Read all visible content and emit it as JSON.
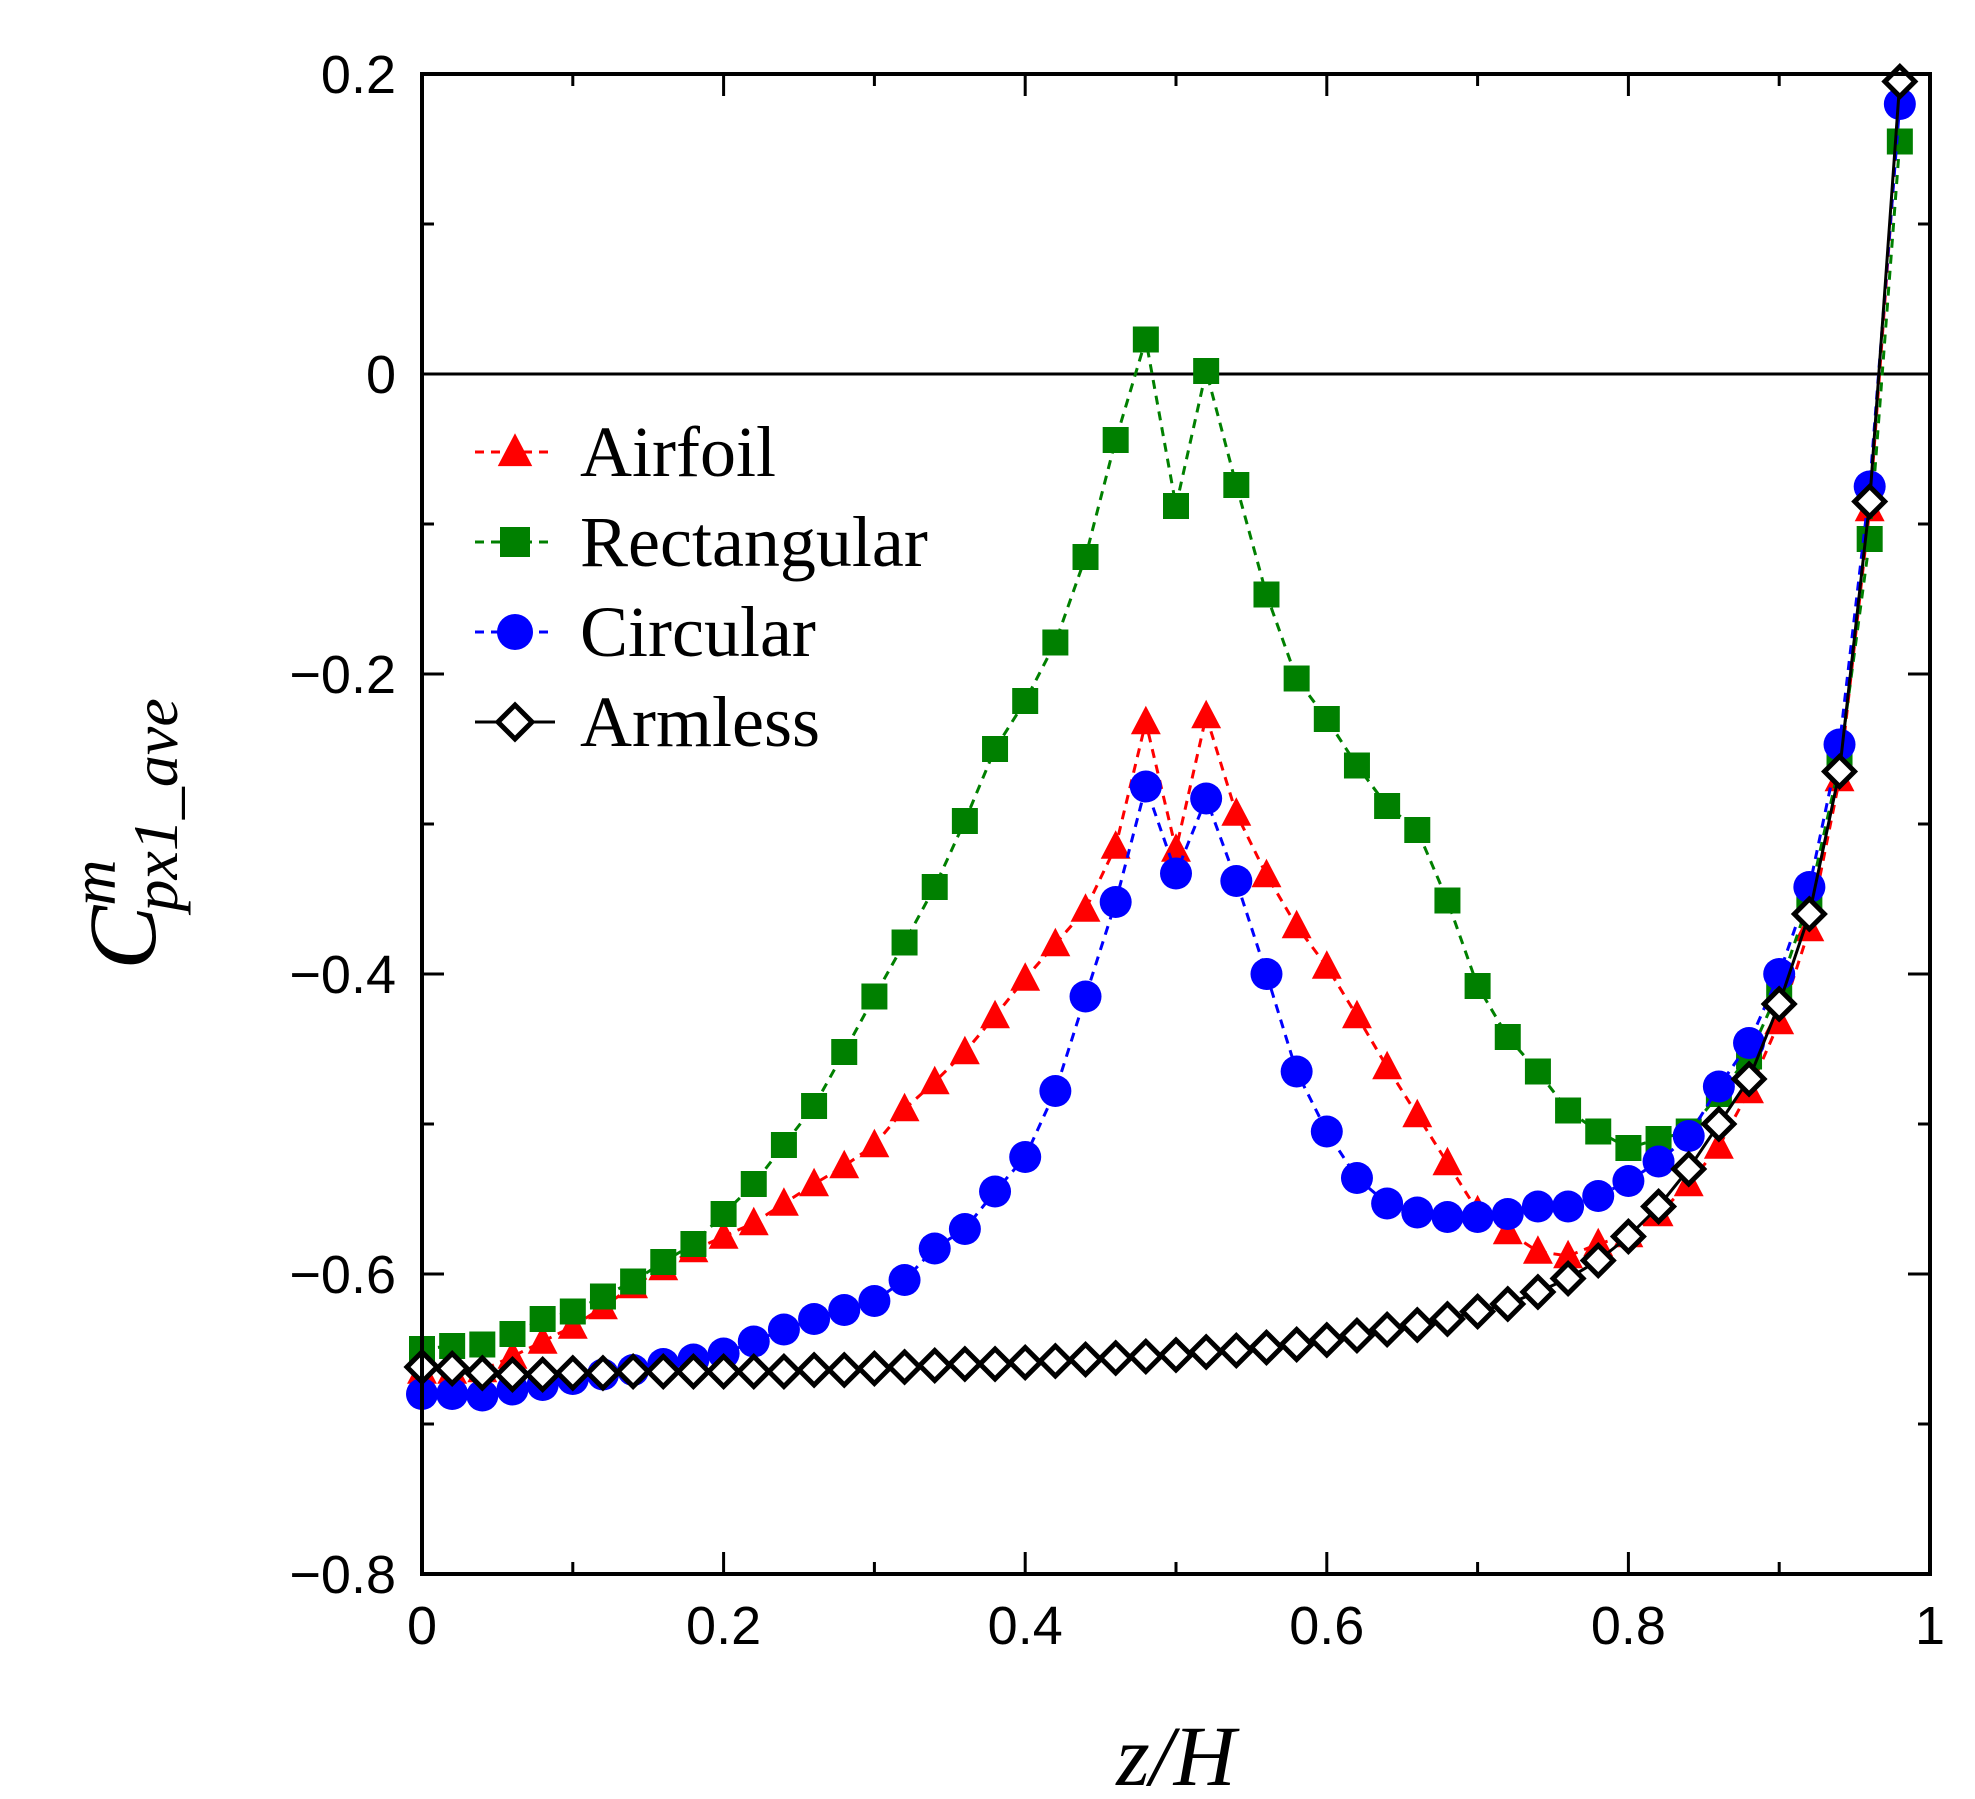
{
  "chart_data": {
    "type": "line",
    "title": "",
    "xlabel": "z/H",
    "ylabel": {
      "base": "C",
      "sup": "m",
      "sub": "px1_ave"
    },
    "xlim": [
      0,
      1
    ],
    "ylim": [
      -0.8,
      0.2
    ],
    "xticks": [
      0,
      0.2,
      0.4,
      0.6,
      0.8,
      1
    ],
    "xtick_labels": [
      "0",
      "0.2",
      "0.4",
      "0.6",
      "0.8",
      "1"
    ],
    "yticks": [
      -0.8,
      -0.6,
      -0.4,
      -0.2,
      0,
      0.2
    ],
    "ytick_labels": [
      "−0.8",
      "−0.6",
      "−0.4",
      "−0.2",
      "0",
      "0.2"
    ],
    "reference_line_y": 0,
    "grid": false,
    "legend_position": "upper-left",
    "series": [
      {
        "name": "Airfoil",
        "color": "#ff0000",
        "marker": "triangle",
        "x": [
          0,
          0.02,
          0.04,
          0.06,
          0.08,
          0.1,
          0.12,
          0.14,
          0.16,
          0.18,
          0.2,
          0.22,
          0.24,
          0.26,
          0.28,
          0.3,
          0.32,
          0.34,
          0.36,
          0.38,
          0.4,
          0.42,
          0.44,
          0.46,
          0.48,
          0.5,
          0.52,
          0.54,
          0.56,
          0.58,
          0.6,
          0.62,
          0.64,
          0.66,
          0.68,
          0.7,
          0.72,
          0.74,
          0.76,
          0.78,
          0.8,
          0.82,
          0.84,
          0.86,
          0.88,
          0.9,
          0.92,
          0.94,
          0.96,
          0.98
        ],
        "y": [
          -0.665,
          -0.665,
          -0.664,
          -0.655,
          -0.645,
          -0.635,
          -0.622,
          -0.608,
          -0.596,
          -0.584,
          -0.575,
          -0.566,
          -0.553,
          -0.54,
          -0.528,
          -0.514,
          -0.49,
          -0.472,
          -0.452,
          -0.428,
          -0.403,
          -0.38,
          -0.357,
          -0.315,
          -0.232,
          -0.317,
          -0.228,
          -0.293,
          -0.334,
          -0.368,
          -0.395,
          -0.428,
          -0.462,
          -0.494,
          -0.526,
          -0.558,
          -0.572,
          -0.585,
          -0.588,
          -0.58,
          -0.574,
          -0.56,
          -0.54,
          -0.515,
          -0.478,
          -0.432,
          -0.37,
          -0.27,
          -0.09,
          0.185
        ]
      },
      {
        "name": "Rectangular",
        "color": "#008000",
        "marker": "square",
        "x": [
          0,
          0.02,
          0.04,
          0.06,
          0.08,
          0.1,
          0.12,
          0.14,
          0.16,
          0.18,
          0.2,
          0.22,
          0.24,
          0.26,
          0.28,
          0.3,
          0.32,
          0.34,
          0.36,
          0.38,
          0.4,
          0.42,
          0.44,
          0.46,
          0.48,
          0.5,
          0.52,
          0.54,
          0.56,
          0.58,
          0.6,
          0.62,
          0.64,
          0.66,
          0.68,
          0.7,
          0.72,
          0.74,
          0.76,
          0.78,
          0.8,
          0.82,
          0.84,
          0.86,
          0.88,
          0.9,
          0.92,
          0.94,
          0.96,
          0.98
        ],
        "y": [
          -0.65,
          -0.648,
          -0.647,
          -0.64,
          -0.63,
          -0.625,
          -0.615,
          -0.605,
          -0.592,
          -0.58,
          -0.56,
          -0.54,
          -0.514,
          -0.488,
          -0.452,
          -0.415,
          -0.379,
          -0.342,
          -0.298,
          -0.25,
          -0.218,
          -0.179,
          -0.122,
          -0.044,
          0.023,
          -0.088,
          0.002,
          -0.074,
          -0.147,
          -0.203,
          -0.23,
          -0.261,
          -0.288,
          -0.304,
          -0.351,
          -0.408,
          -0.442,
          -0.465,
          -0.491,
          -0.505,
          -0.516,
          -0.51,
          -0.505,
          -0.48,
          -0.455,
          -0.41,
          -0.35,
          -0.26,
          -0.11,
          0.155
        ]
      },
      {
        "name": "Circular",
        "color": "#0000ff",
        "marker": "circle",
        "x": [
          0,
          0.02,
          0.04,
          0.06,
          0.08,
          0.1,
          0.12,
          0.14,
          0.16,
          0.18,
          0.2,
          0.22,
          0.24,
          0.26,
          0.28,
          0.3,
          0.32,
          0.34,
          0.36,
          0.38,
          0.4,
          0.42,
          0.44,
          0.46,
          0.48,
          0.5,
          0.52,
          0.54,
          0.56,
          0.58,
          0.6,
          0.62,
          0.64,
          0.66,
          0.68,
          0.7,
          0.72,
          0.74,
          0.76,
          0.78,
          0.8,
          0.82,
          0.84,
          0.86,
          0.88,
          0.9,
          0.92,
          0.94,
          0.96,
          0.98
        ],
        "y": [
          -0.68,
          -0.68,
          -0.681,
          -0.677,
          -0.674,
          -0.67,
          -0.667,
          -0.664,
          -0.66,
          -0.657,
          -0.653,
          -0.645,
          -0.637,
          -0.63,
          -0.624,
          -0.618,
          -0.604,
          -0.583,
          -0.57,
          -0.545,
          -0.522,
          -0.478,
          -0.415,
          -0.352,
          -0.275,
          -0.333,
          -0.283,
          -0.338,
          -0.4,
          -0.465,
          -0.505,
          -0.536,
          -0.553,
          -0.559,
          -0.562,
          -0.562,
          -0.56,
          -0.555,
          -0.555,
          -0.548,
          -0.538,
          -0.525,
          -0.508,
          -0.475,
          -0.446,
          -0.4,
          -0.342,
          -0.247,
          -0.075,
          0.18
        ]
      },
      {
        "name": "Armless",
        "color": "#000000",
        "marker": "diamond",
        "x": [
          0,
          0.02,
          0.04,
          0.06,
          0.08,
          0.1,
          0.12,
          0.14,
          0.16,
          0.18,
          0.2,
          0.22,
          0.24,
          0.26,
          0.28,
          0.3,
          0.32,
          0.34,
          0.36,
          0.38,
          0.4,
          0.42,
          0.44,
          0.46,
          0.48,
          0.5,
          0.52,
          0.54,
          0.56,
          0.58,
          0.6,
          0.62,
          0.64,
          0.66,
          0.68,
          0.7,
          0.72,
          0.74,
          0.76,
          0.78,
          0.8,
          0.82,
          0.84,
          0.86,
          0.88,
          0.9,
          0.92,
          0.94,
          0.96,
          0.98
        ],
        "y": [
          -0.662,
          -0.663,
          -0.666,
          -0.667,
          -0.667,
          -0.666,
          -0.666,
          -0.665,
          -0.665,
          -0.665,
          -0.665,
          -0.665,
          -0.665,
          -0.664,
          -0.664,
          -0.663,
          -0.662,
          -0.661,
          -0.66,
          -0.66,
          -0.659,
          -0.658,
          -0.657,
          -0.656,
          -0.655,
          -0.654,
          -0.652,
          -0.651,
          -0.649,
          -0.647,
          -0.644,
          -0.641,
          -0.637,
          -0.634,
          -0.63,
          -0.625,
          -0.62,
          -0.612,
          -0.603,
          -0.591,
          -0.575,
          -0.555,
          -0.53,
          -0.5,
          -0.47,
          -0.42,
          -0.36,
          -0.265,
          -0.085,
          0.195
        ]
      }
    ]
  }
}
